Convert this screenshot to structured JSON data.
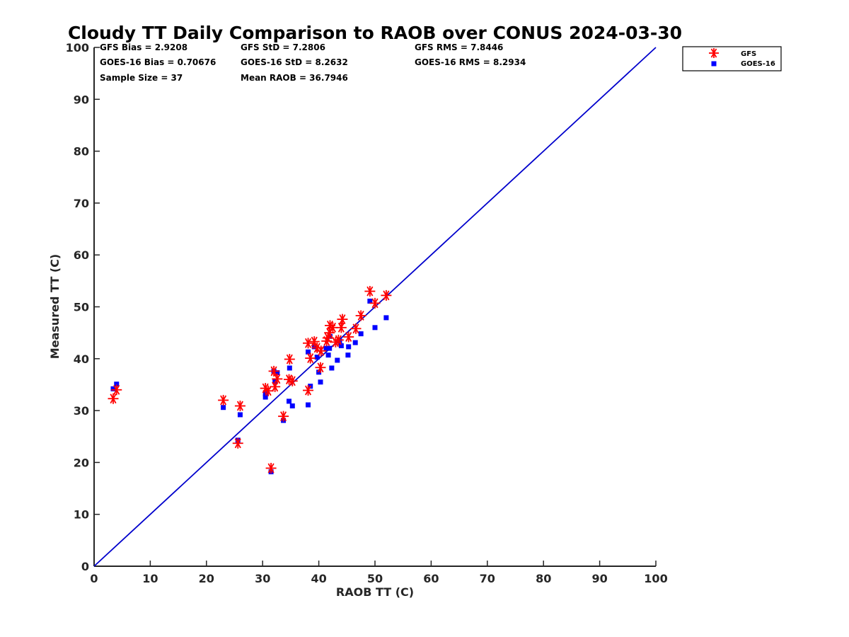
{
  "chart_data": {
    "type": "scatter",
    "title": "Cloudy TT Daily Comparison to RAOB over CONUS 2024-03-30",
    "xlabel": "RAOB TT (C)",
    "ylabel": "Measured TT (C)",
    "xlim": [
      0,
      100
    ],
    "ylim": [
      0,
      100
    ],
    "xticks": [
      "0",
      "10",
      "20",
      "30",
      "40",
      "50",
      "60",
      "70",
      "80",
      "90",
      "100"
    ],
    "yticks": [
      "0",
      "10",
      "20",
      "30",
      "40",
      "50",
      "60",
      "70",
      "80",
      "90",
      "100"
    ],
    "grid": false,
    "legend_position": "top-right (outside)",
    "reference_line": {
      "from": [
        0,
        0
      ],
      "to": [
        100,
        100
      ],
      "color": "#0000cc"
    },
    "stats": [
      "GFS Bias = 2.9208",
      "GFS StD = 7.2806",
      "GFS RMS = 7.8446",
      "GOES-16 Bias = 0.70676",
      "GOES-16 StD = 8.2632",
      "GOES-16 RMS = 8.2934",
      "Sample Size = 37",
      "Mean RAOB = 36.7946"
    ],
    "series": [
      {
        "name": "GFS",
        "marker": "asterisk",
        "color": "#ff0000",
        "points": [
          [
            3.4,
            32.3
          ],
          [
            4.0,
            34.0
          ],
          [
            23.0,
            32.0
          ],
          [
            25.6,
            23.7
          ],
          [
            26.0,
            30.9
          ],
          [
            30.5,
            34.3
          ],
          [
            31.0,
            33.8
          ],
          [
            31.5,
            18.9
          ],
          [
            32.0,
            37.6
          ],
          [
            32.2,
            34.6
          ],
          [
            32.6,
            36.1
          ],
          [
            33.7,
            28.9
          ],
          [
            34.7,
            36.0
          ],
          [
            34.8,
            39.9
          ],
          [
            35.3,
            35.7
          ],
          [
            38.1,
            33.9
          ],
          [
            38.1,
            43.0
          ],
          [
            38.5,
            40.1
          ],
          [
            39.2,
            43.3
          ],
          [
            39.7,
            42.1
          ],
          [
            40.3,
            38.3
          ],
          [
            40.4,
            41.5
          ],
          [
            41.4,
            43.4
          ],
          [
            41.6,
            44.0
          ],
          [
            41.9,
            45.0
          ],
          [
            42.0,
            46.4
          ],
          [
            42.5,
            46.0
          ],
          [
            43.0,
            43.2
          ],
          [
            43.5,
            43.6
          ],
          [
            44.0,
            46.0
          ],
          [
            44.2,
            47.6
          ],
          [
            45.3,
            44.2
          ],
          [
            46.6,
            45.8
          ],
          [
            47.5,
            48.3
          ],
          [
            49.1,
            53.0
          ],
          [
            50.0,
            50.7
          ],
          [
            52.0,
            52.2
          ]
        ]
      },
      {
        "name": "GOES-16",
        "marker": "square",
        "color": "#0000ff",
        "points": [
          [
            3.4,
            34.2
          ],
          [
            4.0,
            35.1
          ],
          [
            23.0,
            30.6
          ],
          [
            25.6,
            24.3
          ],
          [
            26.0,
            29.2
          ],
          [
            30.5,
            33.2
          ],
          [
            30.5,
            32.6
          ],
          [
            31.5,
            18.2
          ],
          [
            32.0,
            37.6
          ],
          [
            32.2,
            35.6
          ],
          [
            32.6,
            37.3
          ],
          [
            33.7,
            28.1
          ],
          [
            34.7,
            31.8
          ],
          [
            34.8,
            38.2
          ],
          [
            35.3,
            30.9
          ],
          [
            38.1,
            31.1
          ],
          [
            38.1,
            41.3
          ],
          [
            38.5,
            34.7
          ],
          [
            39.2,
            42.3
          ],
          [
            39.7,
            40.3
          ],
          [
            40.0,
            37.4
          ],
          [
            40.3,
            35.5
          ],
          [
            41.3,
            42.0
          ],
          [
            41.7,
            40.7
          ],
          [
            41.9,
            42.0
          ],
          [
            42.0,
            44.3
          ],
          [
            42.3,
            38.2
          ],
          [
            43.3,
            39.7
          ],
          [
            43.7,
            43.4
          ],
          [
            44.0,
            42.5
          ],
          [
            45.2,
            40.7
          ],
          [
            45.3,
            42.3
          ],
          [
            46.5,
            43.1
          ],
          [
            47.5,
            44.8
          ],
          [
            49.1,
            51.1
          ],
          [
            50.0,
            46.0
          ],
          [
            52.0,
            47.9
          ]
        ]
      }
    ]
  }
}
